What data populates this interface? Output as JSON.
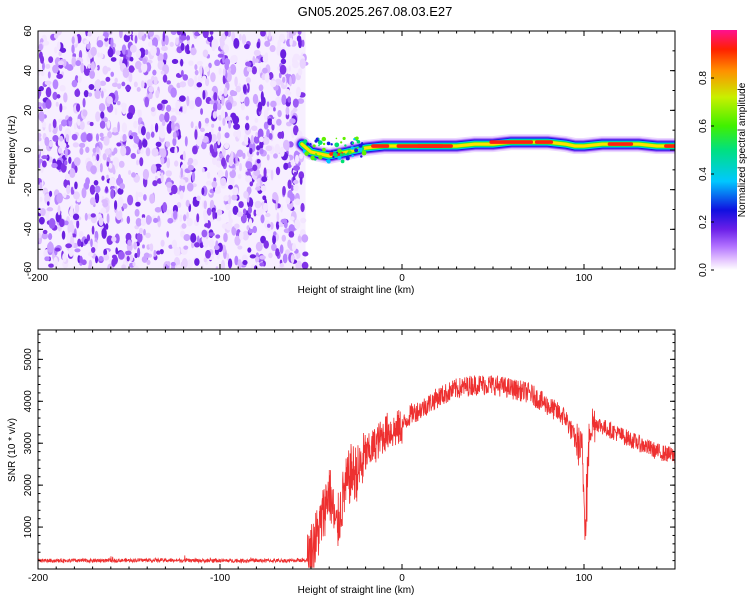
{
  "title": "GN05.2025.267.08.03.E27",
  "chart_data": [
    {
      "type": "heatmap",
      "name": "spectrogram",
      "xlabel": "Height of straight line (km)",
      "ylabel": "Frequency (Hz)",
      "xlim": [
        -200,
        150
      ],
      "ylim": [
        -60,
        60
      ],
      "xticks": [
        -200,
        -100,
        0,
        100
      ],
      "yticks": [
        -60,
        -40,
        -20,
        0,
        20,
        40,
        60
      ],
      "noise_region_x": [
        -200,
        -53
      ],
      "signal_ridge": {
        "x": [
          -55,
          -50,
          -45,
          -40,
          -35,
          -30,
          -25,
          -20,
          -10,
          0,
          10,
          20,
          30,
          40,
          50,
          60,
          70,
          80,
          90,
          95,
          100,
          110,
          120,
          130,
          140,
          150
        ],
        "y": [
          3,
          -1,
          -2,
          -3,
          -2,
          -1,
          0,
          1,
          2,
          2,
          2,
          2,
          2,
          3,
          3,
          4,
          4,
          4,
          3,
          2,
          2,
          3,
          3,
          3,
          2,
          2
        ]
      },
      "colorbar": {
        "label": "Normalized spectral amplitude",
        "range": [
          0.0,
          1.0
        ],
        "ticks": [
          0.0,
          0.2,
          0.4,
          0.6,
          0.8
        ]
      }
    },
    {
      "type": "line",
      "name": "snr",
      "xlabel": "Height of straight line (km)",
      "ylabel": "SNR (10 * v/v)",
      "xlim": [
        -200,
        150
      ],
      "ylim": [
        0,
        5700
      ],
      "xticks": [
        -200,
        -100,
        0,
        100
      ],
      "yticks": [
        1000,
        2000,
        3000,
        4000,
        5000
      ],
      "color": "#ee3030",
      "series": [
        {
          "name": "SNR",
          "x": [
            -200,
            -170,
            -140,
            -110,
            -80,
            -60,
            -52,
            -45,
            -40,
            -36,
            -32,
            -28,
            -24,
            -20,
            -16,
            -12,
            -8,
            -4,
            0,
            5,
            10,
            20,
            30,
            40,
            50,
            60,
            70,
            80,
            90,
            95,
            99,
            101,
            103,
            106,
            110,
            120,
            130,
            140,
            150
          ],
          "y": [
            200,
            200,
            210,
            200,
            200,
            200,
            220,
            1000,
            1900,
            900,
            1800,
            2300,
            2300,
            2700,
            2900,
            3100,
            3300,
            3300,
            3400,
            3700,
            3800,
            4100,
            4300,
            4400,
            4400,
            4300,
            4200,
            3900,
            3600,
            3100,
            2800,
            600,
            3400,
            3500,
            3400,
            3200,
            3000,
            2800,
            2700
          ]
        }
      ]
    }
  ]
}
